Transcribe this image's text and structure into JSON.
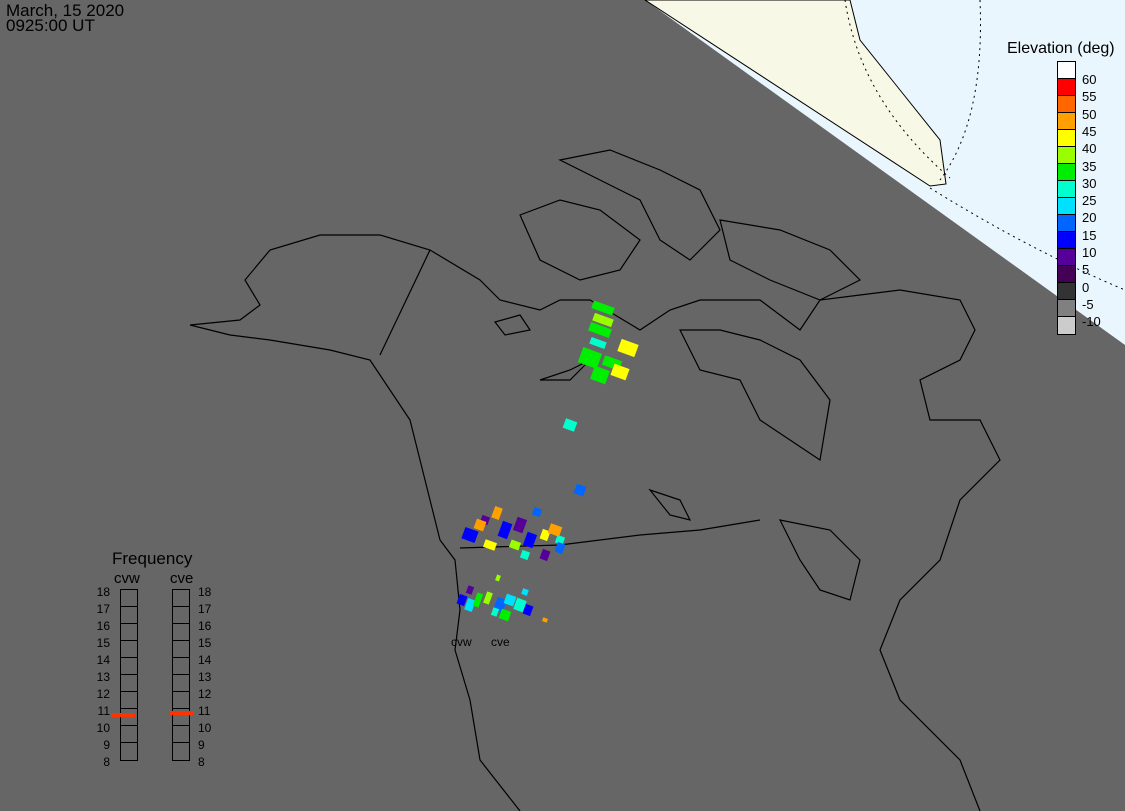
{
  "header": {
    "date": "March, 15 2020",
    "time": "0925:00 UT"
  },
  "elevation_legend": {
    "title": "Elevation (deg)",
    "ticks": [
      "60",
      "55",
      "50",
      "45",
      "40",
      "35",
      "30",
      "25",
      "20",
      "15",
      "10",
      "5",
      "0",
      "-5",
      "-10"
    ],
    "colors": [
      "#ffffff",
      "#ff0000",
      "#ff6600",
      "#ffa000",
      "#ffff00",
      "#99ff00",
      "#00ee00",
      "#00ffcc",
      "#00e0ff",
      "#0066ff",
      "#0000ff",
      "#550099",
      "#440055",
      "#333333",
      "#808080",
      "#cccccc"
    ]
  },
  "frequency": {
    "title": "Frequency",
    "unit_ticks": [
      "18",
      "17",
      "16",
      "15",
      "14",
      "13",
      "12",
      "11",
      "10",
      "9",
      "8"
    ],
    "radars": [
      {
        "name": "cvw",
        "value_mhz": 10.6
      },
      {
        "name": "cve",
        "value_mhz": 10.7
      }
    ],
    "marker_color": "#ff3300"
  },
  "map": {
    "radar_labels": [
      "cvw",
      "cve"
    ],
    "colors": {
      "night": "#666666",
      "day_ocean": "#eaf6fd",
      "day_land": "#f8f8e6",
      "coast": "#000000"
    }
  }
}
